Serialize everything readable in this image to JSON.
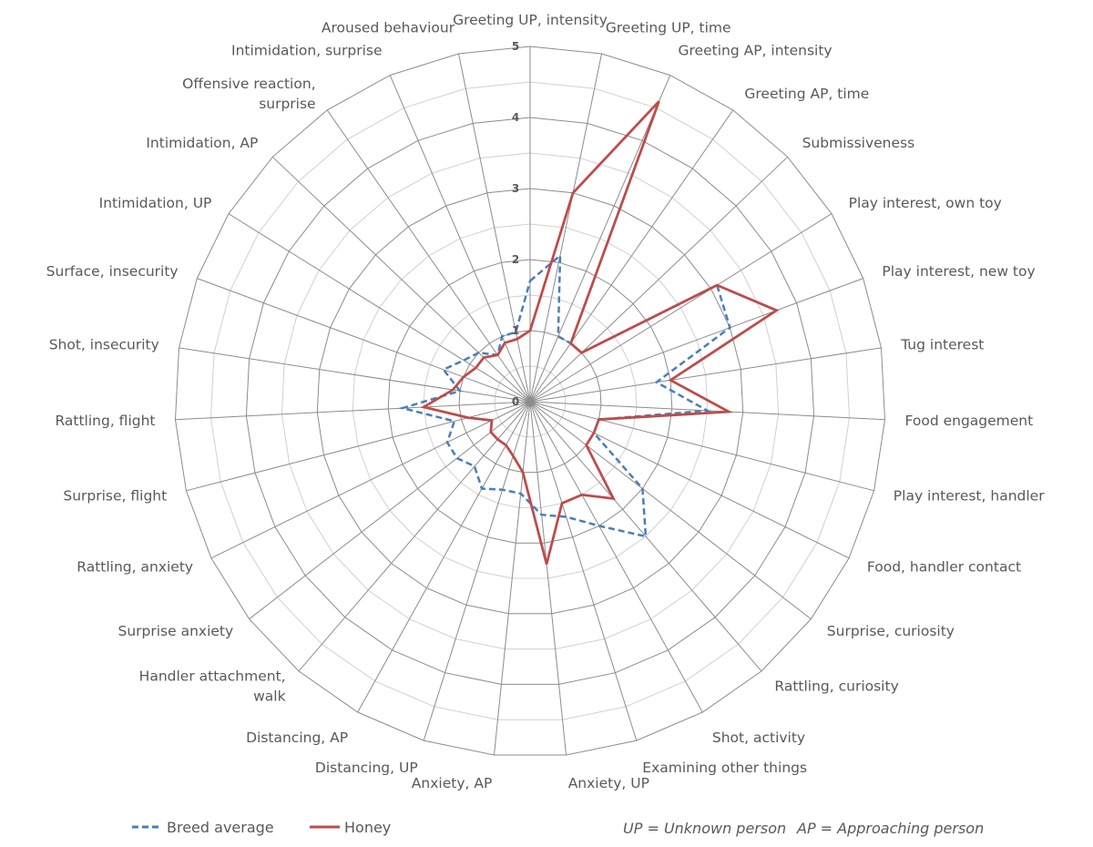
{
  "chart_data": {
    "type": "radar",
    "title": "",
    "rmin": 0,
    "rmax": 5,
    "ticks": [
      "0",
      "1",
      "2",
      "3",
      "4",
      "5"
    ],
    "minor_grid": true,
    "categories": [
      "Greeting UP, intensity",
      "Greeting UP, time",
      "Greeting AP, intensity",
      "Greeting AP, time",
      "Submissiveness",
      "Play interest, own toy",
      "Play interest, new toy",
      "Tug interest",
      "Food engagement",
      "Play interest, handler",
      "Food, handler contact",
      "Surprise, curiosity",
      "Rattling, curiosity",
      "Shot, activity",
      "Examining other things",
      "Anxiety, UP",
      "Anxiety, AP",
      "Distancing, UP",
      "Distancing, AP",
      "Handler attachment,\nwalk",
      "Surprise anxiety",
      "Rattling, anxiety",
      "Surprise, flight",
      "Rattling, flight",
      "Shot, insecurity",
      "Surface, insecurity",
      "Intimidation, UP",
      "Intimidation, AP",
      "Offensive reaction,\nsurprise",
      "Intimidation, surprise",
      "Aroused behaviour"
    ],
    "series": [
      {
        "name": "Breed average",
        "color": "#4a7ebb",
        "dash": true,
        "values": [
          1.7,
          2.1,
          1.0,
          1.0,
          1.0,
          3.1,
          3.0,
          1.8,
          2.5,
          1.0,
          1.0,
          2.0,
          2.5,
          2.0,
          1.7,
          1.6,
          1.3,
          1.3,
          1.4,
          1.2,
          1.3,
          1.3,
          1.1,
          1.8,
          1.0,
          1.3,
          1.1,
          1.0,
          0.8,
          1.0,
          1.0
        ]
      },
      {
        "name": "Honey",
        "color": "#be4b48",
        "dash": false,
        "values": [
          1.0,
          3.0,
          4.6,
          1.0,
          1.0,
          3.1,
          3.7,
          2.0,
          2.8,
          1.0,
          1.0,
          1.0,
          1.8,
          1.5,
          1.5,
          2.3,
          1.0,
          0.8,
          0.7,
          0.7,
          0.7,
          0.6,
          0.9,
          1.5,
          1.1,
          1.0,
          0.9,
          0.9,
          0.8,
          0.9,
          0.9
        ]
      }
    ],
    "legend_position": "bottom-left",
    "notes": [
      "UP = Unknown person",
      "AP = Approaching person"
    ],
    "colors": {
      "grid_major": "#8c8c8c",
      "grid_minor": "#d0d0d0",
      "text": "#595959"
    }
  }
}
